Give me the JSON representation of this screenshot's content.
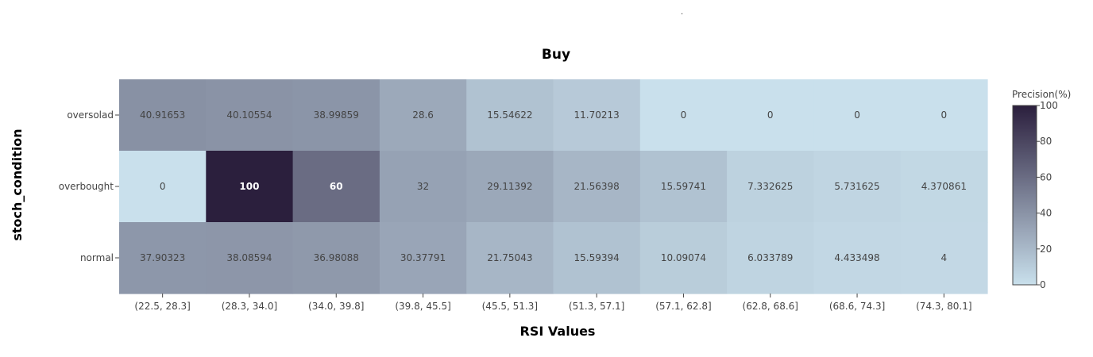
{
  "chart_data": {
    "type": "heatmap",
    "title": "Buy",
    "xlabel": "RSI Values",
    "ylabel": "stoch_condition",
    "x_categories": [
      "(22.5, 28.3]",
      "(28.3, 34.0]",
      "(34.0, 39.8]",
      "(39.8, 45.5]",
      "(45.5, 51.3]",
      "(51.3, 57.1]",
      "(57.1, 62.8]",
      "(62.8, 68.6]",
      "(68.6, 74.3]",
      "(74.3, 80.1]"
    ],
    "y_categories": [
      "oversolad",
      "overbought",
      "normal"
    ],
    "z": [
      [
        "40.91653",
        "40.10554",
        "38.99859",
        "28.6",
        "15.54622",
        "11.70213",
        "0",
        "0",
        "0",
        "0"
      ],
      [
        "0",
        "100",
        "60",
        "32",
        "29.11392",
        "21.56398",
        "15.59741",
        "7.332625",
        "5.731625",
        "4.370861"
      ],
      [
        "37.90323",
        "38.08594",
        "36.98088",
        "30.37791",
        "21.75043",
        "15.59394",
        "10.09074",
        "6.033789",
        "4.433498",
        "4"
      ]
    ],
    "colorbar": {
      "title": "Precision(%)",
      "range": [
        0,
        100
      ],
      "ticks": [
        "0",
        "20",
        "40",
        "60",
        "80",
        "100"
      ],
      "color_low": "#c9e0ec",
      "color_high": "#2b1f3d"
    }
  }
}
